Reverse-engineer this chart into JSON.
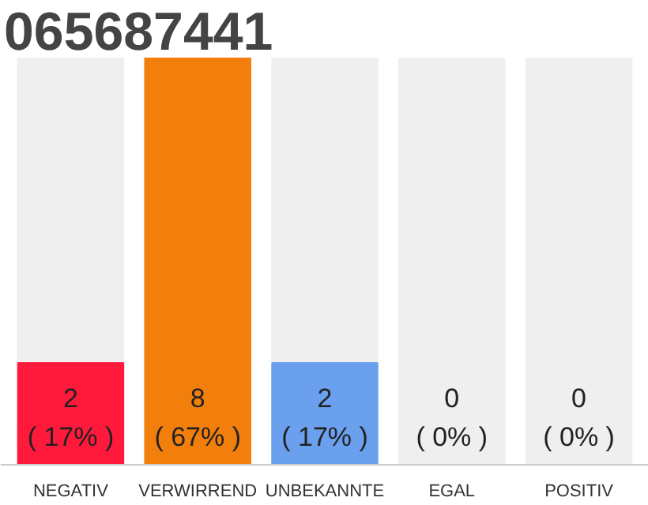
{
  "chart_data": {
    "type": "bar",
    "title": "065687441",
    "categories": [
      "NEGATIV",
      "VERWIRREND",
      "UNBEKANNTE",
      "EGAL",
      "POSITIV"
    ],
    "values": [
      2,
      8,
      2,
      0,
      0
    ],
    "colors": [
      "#ff1a3c",
      "#f27f0c",
      "#6aa0ee",
      "#e0e0e0",
      "#e0e0e0"
    ],
    "value_labels": [
      "2\n( 17% )",
      "8\n( 67% )",
      "2\n( 17% )",
      "0\n( 0% )",
      "0\n( 0% )"
    ],
    "grid": false
  }
}
